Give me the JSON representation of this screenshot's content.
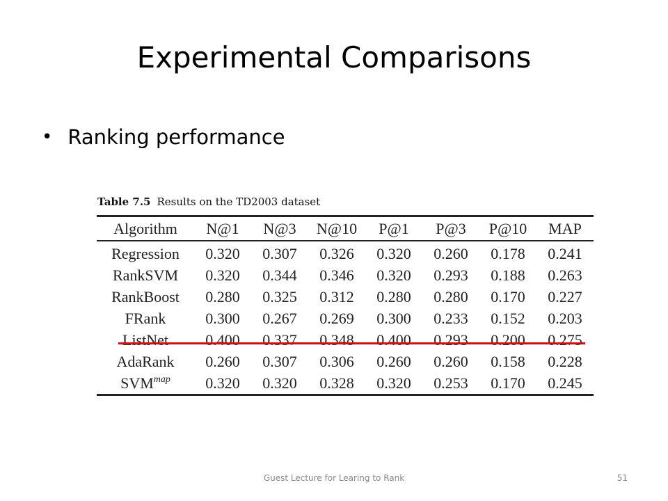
{
  "slide": {
    "title": "Experimental Comparisons",
    "bullet": "Ranking performance"
  },
  "table": {
    "caption_number": "Table 7.5",
    "caption_text": "Results on the TD2003 dataset",
    "headers": [
      "Algorithm",
      "N@1",
      "N@3",
      "N@10",
      "P@1",
      "P@3",
      "P@10",
      "MAP"
    ],
    "rows": [
      {
        "algorithm": "Regression",
        "algorithm_sup": "",
        "values": [
          "0.320",
          "0.307",
          "0.326",
          "0.320",
          "0.260",
          "0.178",
          "0.241"
        ]
      },
      {
        "algorithm": "RankSVM",
        "algorithm_sup": "",
        "values": [
          "0.320",
          "0.344",
          "0.346",
          "0.320",
          "0.293",
          "0.188",
          "0.263"
        ]
      },
      {
        "algorithm": "RankBoost",
        "algorithm_sup": "",
        "values": [
          "0.280",
          "0.325",
          "0.312",
          "0.280",
          "0.280",
          "0.170",
          "0.227"
        ]
      },
      {
        "algorithm": "FRank",
        "algorithm_sup": "",
        "values": [
          "0.300",
          "0.267",
          "0.269",
          "0.300",
          "0.233",
          "0.152",
          "0.203"
        ]
      },
      {
        "algorithm": "ListNet",
        "algorithm_sup": "",
        "values": [
          "0.400",
          "0.337",
          "0.348",
          "0.400",
          "0.293",
          "0.200",
          "0.275"
        ]
      },
      {
        "algorithm": "AdaRank",
        "algorithm_sup": "",
        "values": [
          "0.260",
          "0.307",
          "0.306",
          "0.260",
          "0.260",
          "0.158",
          "0.228"
        ]
      },
      {
        "algorithm": "SVM",
        "algorithm_sup": "map",
        "values": [
          "0.320",
          "0.320",
          "0.328",
          "0.320",
          "0.253",
          "0.170",
          "0.245"
        ]
      }
    ],
    "highlighted_row": "ListNet",
    "highlight_color": "#d01010"
  },
  "footer": {
    "text": "Guest Lecture for Learing to Rank",
    "page_number": "51"
  }
}
